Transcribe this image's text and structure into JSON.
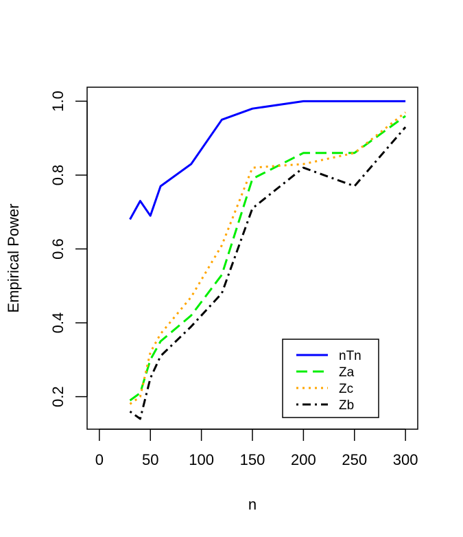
{
  "chart_data": {
    "type": "line",
    "title": "",
    "xlabel": "n",
    "ylabel": "Empirical Power",
    "xlim": [
      -12,
      312
    ],
    "ylim": [
      0.112,
      1.038
    ],
    "xticks": [
      0,
      50,
      100,
      150,
      200,
      250,
      300
    ],
    "xtick_labels": [
      "0",
      "50",
      "100",
      "150",
      "200",
      "250",
      "300"
    ],
    "yticks": [
      0.2,
      0.4,
      0.6,
      0.8,
      1.0
    ],
    "ytick_labels": [
      "0.2",
      "0.4",
      "0.6",
      "0.8",
      "1.0"
    ],
    "grid": false,
    "legend_position": "bottom-right",
    "series": [
      {
        "name": "nTn",
        "color": "#0000ff",
        "linestyle": "solid",
        "x": [
          30,
          40,
          50,
          60,
          90,
          120,
          150,
          200,
          250,
          300
        ],
        "y": [
          0.68,
          0.73,
          0.69,
          0.77,
          0.83,
          0.95,
          0.98,
          1.0,
          1.0,
          1.0
        ]
      },
      {
        "name": "Za",
        "color": "#00ee00",
        "linestyle": "dashed",
        "x": [
          30,
          40,
          50,
          60,
          90,
          120,
          150,
          200,
          250,
          300
        ],
        "y": [
          0.19,
          0.21,
          0.3,
          0.35,
          0.42,
          0.53,
          0.79,
          0.86,
          0.86,
          0.96
        ]
      },
      {
        "name": "Zc",
        "color": "#ffa500",
        "linestyle": "dotted",
        "x": [
          30,
          40,
          50,
          60,
          90,
          120,
          150,
          200,
          250,
          300
        ],
        "y": [
          0.18,
          0.2,
          0.32,
          0.37,
          0.47,
          0.61,
          0.82,
          0.83,
          0.86,
          0.97
        ]
      },
      {
        "name": "Zb",
        "color": "#000000",
        "linestyle": "dotdash",
        "x": [
          30,
          40,
          50,
          60,
          90,
          120,
          150,
          200,
          250,
          300
        ],
        "y": [
          0.16,
          0.14,
          0.25,
          0.31,
          0.39,
          0.48,
          0.71,
          0.82,
          0.77,
          0.93
        ]
      }
    ]
  }
}
